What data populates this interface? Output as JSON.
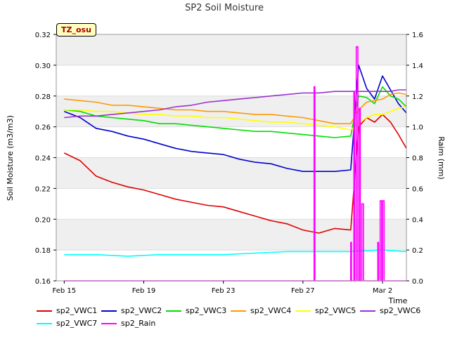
{
  "chart_data": {
    "type": "line",
    "title": "SP2 Soil Moisture",
    "badge": "TZ_osu",
    "xlabel": "Time",
    "ylabel": "Soil Moisture (m3/m3)",
    "ylabel2": "Raim (mm)",
    "xlim": [
      -0.5,
      21.5
    ],
    "ylim": [
      0.16,
      0.32
    ],
    "y2lim": [
      0.0,
      1.6
    ],
    "x_ticks": [
      {
        "x": 0,
        "label": "Feb 15"
      },
      {
        "x": 5,
        "label": "Feb 19"
      },
      {
        "x": 10,
        "label": "Feb 23"
      },
      {
        "x": 15,
        "label": "Feb 27"
      },
      {
        "x": 20,
        "label": "Mar 2"
      }
    ],
    "y_ticks": [
      "0.16",
      "0.18",
      "0.20",
      "0.22",
      "0.24",
      "0.26",
      "0.28",
      "0.30",
      "0.32"
    ],
    "y2_ticks": [
      "0.0",
      "0.2",
      "0.4",
      "0.6",
      "0.8",
      "1.0",
      "1.2",
      "1.4",
      "1.6"
    ],
    "grid": true,
    "legend_position": "bottom",
    "series": [
      {
        "name": "sp2_VWC1",
        "color": "#dd0000",
        "axis": "left",
        "x": [
          0,
          1,
          2,
          3,
          4,
          5,
          6,
          7,
          8,
          9,
          10,
          11,
          12,
          13,
          14,
          15,
          16,
          17,
          18,
          18.5,
          19,
          19.5,
          20,
          20.5,
          21,
          21.5
        ],
        "y": [
          0.243,
          0.238,
          0.228,
          0.224,
          0.221,
          0.219,
          0.216,
          0.213,
          0.211,
          0.209,
          0.208,
          0.205,
          0.202,
          0.199,
          0.197,
          0.193,
          0.191,
          0.194,
          0.193,
          0.26,
          0.266,
          0.263,
          0.268,
          0.263,
          0.255,
          0.246
        ]
      },
      {
        "name": "sp2_VWC2",
        "color": "#0000cc",
        "axis": "left",
        "x": [
          0,
          1,
          2,
          3,
          4,
          5,
          6,
          7,
          8,
          9,
          10,
          11,
          12,
          13,
          14,
          15,
          16,
          17,
          18,
          18.5,
          19,
          19.5,
          20,
          20.5,
          21,
          21.5
        ],
        "y": [
          0.27,
          0.266,
          0.259,
          0.257,
          0.254,
          0.252,
          0.249,
          0.246,
          0.244,
          0.243,
          0.242,
          0.239,
          0.237,
          0.236,
          0.233,
          0.231,
          0.231,
          0.231,
          0.232,
          0.3,
          0.285,
          0.278,
          0.293,
          0.284,
          0.275,
          0.269
        ]
      },
      {
        "name": "sp2_VWC3",
        "color": "#00dd00",
        "axis": "left",
        "x": [
          0,
          1,
          2,
          3,
          4,
          5,
          6,
          7,
          8,
          9,
          10,
          11,
          12,
          13,
          14,
          15,
          16,
          17,
          18,
          18.5,
          19,
          19.5,
          20,
          20.5,
          21,
          21.5
        ],
        "y": [
          0.271,
          0.27,
          0.267,
          0.266,
          0.265,
          0.264,
          0.262,
          0.262,
          0.261,
          0.26,
          0.259,
          0.258,
          0.257,
          0.257,
          0.256,
          0.255,
          0.254,
          0.253,
          0.254,
          0.28,
          0.279,
          0.275,
          0.286,
          0.28,
          0.278,
          0.273
        ]
      },
      {
        "name": "sp2_VWC4",
        "color": "#ff9900",
        "axis": "left",
        "x": [
          0,
          1,
          2,
          3,
          4,
          5,
          6,
          7,
          8,
          9,
          10,
          11,
          12,
          13,
          14,
          15,
          16,
          17,
          18,
          18.5,
          19,
          19.5,
          20,
          20.5,
          21,
          21.5
        ],
        "y": [
          0.278,
          0.277,
          0.276,
          0.274,
          0.274,
          0.273,
          0.272,
          0.271,
          0.271,
          0.27,
          0.27,
          0.269,
          0.268,
          0.268,
          0.267,
          0.266,
          0.264,
          0.262,
          0.262,
          0.271,
          0.276,
          0.277,
          0.278,
          0.281,
          0.282,
          0.281
        ]
      },
      {
        "name": "sp2_VWC5",
        "color": "#ffff00",
        "axis": "left",
        "x": [
          0,
          1,
          2,
          3,
          4,
          5,
          6,
          7,
          8,
          9,
          10,
          11,
          12,
          13,
          14,
          15,
          16,
          17,
          18,
          18.5,
          19,
          19.5,
          20,
          20.5,
          21,
          21.5
        ],
        "y": [
          0.271,
          0.271,
          0.27,
          0.27,
          0.269,
          0.268,
          0.268,
          0.267,
          0.267,
          0.266,
          0.266,
          0.265,
          0.264,
          0.263,
          0.263,
          0.262,
          0.261,
          0.26,
          0.258,
          0.262,
          0.266,
          0.268,
          0.268,
          0.27,
          0.272,
          0.273
        ]
      },
      {
        "name": "sp2_VWC6",
        "color": "#9933cc",
        "axis": "left",
        "x": [
          0,
          1,
          2,
          3,
          4,
          5,
          6,
          7,
          8,
          9,
          10,
          11,
          12,
          13,
          14,
          15,
          16,
          17,
          18,
          18.5,
          19,
          19.5,
          20,
          20.5,
          21,
          21.5
        ],
        "y": [
          0.266,
          0.267,
          0.267,
          0.268,
          0.269,
          0.27,
          0.271,
          0.273,
          0.274,
          0.276,
          0.277,
          0.278,
          0.279,
          0.28,
          0.281,
          0.282,
          0.282,
          0.283,
          0.283,
          0.283,
          0.283,
          0.283,
          0.283,
          0.283,
          0.284,
          0.284
        ]
      },
      {
        "name": "sp2_VWC7",
        "color": "#00ffff",
        "axis": "left",
        "x": [
          0,
          2,
          4,
          6,
          8,
          10,
          12,
          14,
          16,
          18,
          20,
          21.5
        ],
        "y": [
          0.177,
          0.177,
          0.176,
          0.177,
          0.177,
          0.177,
          0.178,
          0.179,
          0.179,
          0.179,
          0.18,
          0.179
        ]
      },
      {
        "name": "sp2_Rain",
        "color": "#ff00ff",
        "axis": "right",
        "x": [
          0,
          15.7,
          15.7,
          15.75,
          15.75,
          18.0,
          18.0,
          18.05,
          18.05,
          18.2,
          18.2,
          18.25,
          18.25,
          18.35,
          18.35,
          18.45,
          18.45,
          18.55,
          18.55,
          18.6,
          18.6,
          18.7,
          18.7,
          18.8,
          18.8,
          19.7,
          19.7,
          19.75,
          19.75,
          19.85,
          19.85,
          19.95,
          19.95,
          20.0,
          20.0,
          20.1,
          20.1,
          21.5
        ],
        "y": [
          0.0,
          0.0,
          1.26,
          1.26,
          0.0,
          0.0,
          0.25,
          0.25,
          0.0,
          0.0,
          1.23,
          1.23,
          0.0,
          0.0,
          1.52,
          1.52,
          0.0,
          0.0,
          1.12,
          1.12,
          0.0,
          0.0,
          0.5,
          0.5,
          0.0,
          0.0,
          0.25,
          0.25,
          0.0,
          0.0,
          0.52,
          0.52,
          0.0,
          0.0,
          0.52,
          0.52,
          0.0,
          0.0
        ]
      }
    ]
  }
}
